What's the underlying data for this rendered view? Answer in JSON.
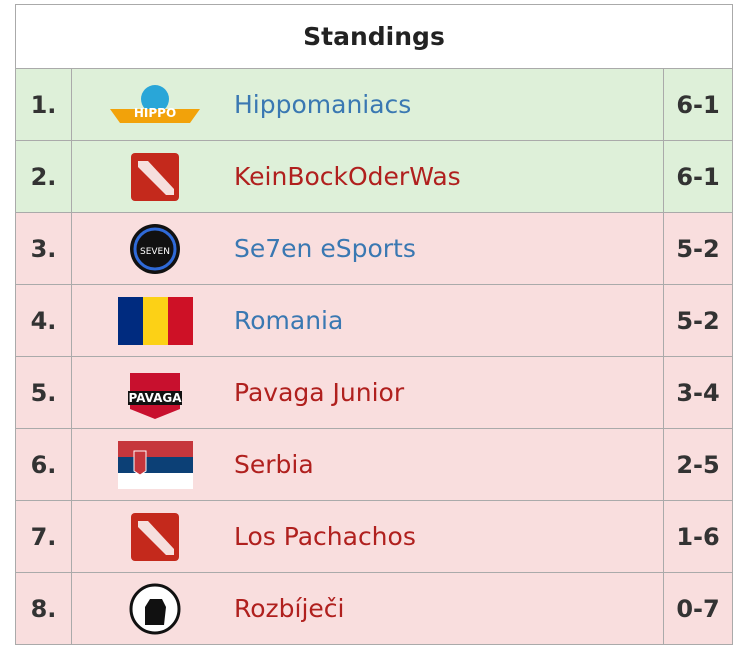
{
  "header": {
    "title": "Standings"
  },
  "table": {
    "rows": [
      {
        "rank": "1.",
        "team": "Hippomaniacs",
        "score": "6-1",
        "team_color": "#3a78b2",
        "background": "#def0d9"
      },
      {
        "rank": "2.",
        "team": "KeinBockOderWas",
        "score": "6-1",
        "team_color": "#b0201e",
        "background": "#def0d9"
      },
      {
        "rank": "3.",
        "team": "Se7en eSports",
        "score": "5-2",
        "team_color": "#3a78b2",
        "background": "#f9dede"
      },
      {
        "rank": "4.",
        "team": "Romania",
        "score": "5-2",
        "team_color": "#3a78b2",
        "background": "#f9dede"
      },
      {
        "rank": "5.",
        "team": "Pavaga Junior",
        "score": "3-4",
        "team_color": "#b0201e",
        "background": "#f9dede"
      },
      {
        "rank": "6.",
        "team": "Serbia",
        "score": "2-5",
        "team_color": "#b0201e",
        "background": "#f9dede"
      },
      {
        "rank": "7.",
        "team": "Los Pachachos",
        "score": "1-6",
        "team_color": "#b0201e",
        "background": "#f9dede"
      },
      {
        "rank": "8.",
        "team": "Rozbíječi",
        "score": "0-7",
        "team_color": "#b0201e",
        "background": "#f9dede"
      }
    ]
  }
}
